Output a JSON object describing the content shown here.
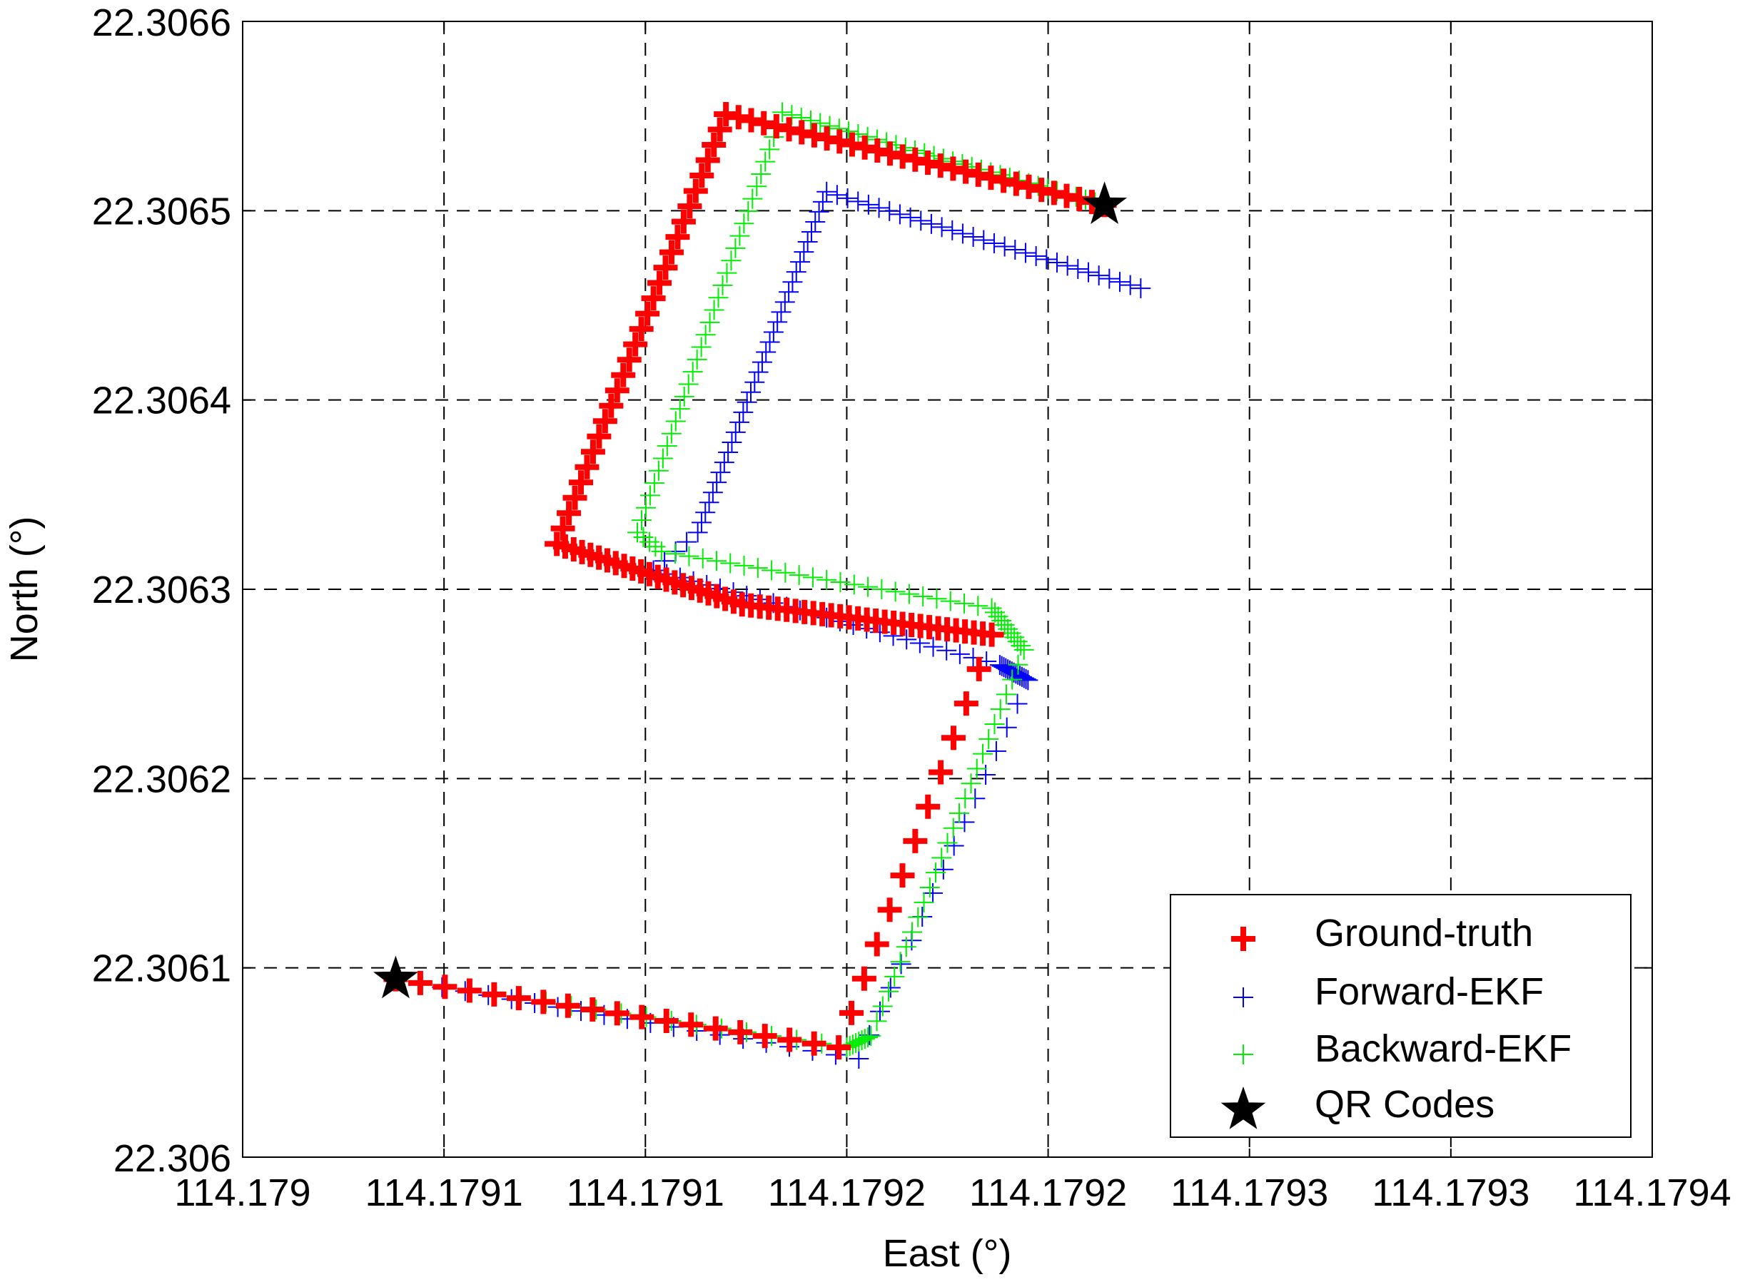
{
  "chart_data": {
    "type": "scatter",
    "xlabel": "East (°)",
    "ylabel": "North (°)",
    "xlim": [
      114.17898,
      114.17933
    ],
    "ylim": [
      22.306,
      22.3066
    ],
    "x_ticks": [
      {
        "value": 114.17898,
        "label": "114.179"
      },
      {
        "value": 114.17903,
        "label": "114.1791"
      },
      {
        "value": 114.17908,
        "label": "114.1791"
      },
      {
        "value": 114.17913,
        "label": "114.1792"
      },
      {
        "value": 114.17918,
        "label": "114.1792"
      },
      {
        "value": 114.17923,
        "label": "114.1793"
      },
      {
        "value": 114.17928,
        "label": "114.1793"
      },
      {
        "value": 114.17933,
        "label": "114.1794"
      }
    ],
    "y_ticks": [
      {
        "value": 22.306,
        "label": "22.306"
      },
      {
        "value": 22.3061,
        "label": "22.3061"
      },
      {
        "value": 22.3062,
        "label": "22.3062"
      },
      {
        "value": 22.3063,
        "label": "22.3063"
      },
      {
        "value": 22.3064,
        "label": "22.3064"
      },
      {
        "value": 22.3065,
        "label": "22.3065"
      },
      {
        "value": 22.3066,
        "label": "22.3066"
      }
    ],
    "grid": true,
    "grid_style": "dashed",
    "legend_position": "bottom-right",
    "series": [
      {
        "name": "Ground-truth",
        "color": "#ff0000",
        "marker": "bold-plus",
        "waypoints": [
          {
            "x": 114.179018,
            "y": 22.306094,
            "n": 18
          },
          {
            "x": 114.179128,
            "y": 22.306058,
            "n": 12
          },
          {
            "x": 114.179166,
            "y": 22.306276,
            "n": 28
          },
          {
            "x": 114.179104,
            "y": 22.306292,
            "n": 22
          },
          {
            "x": 114.179058,
            "y": 22.306324,
            "n": 28
          },
          {
            "x": 114.1791,
            "y": 22.306551,
            "n": 30
          },
          {
            "x": 114.179194,
            "y": 22.306503,
            "n": 0
          }
        ]
      },
      {
        "name": "Forward-EKF",
        "color": "#0000ff",
        "marker": "plus",
        "waypoints": [
          {
            "x": 114.179018,
            "y": 22.306094,
            "n": 20
          },
          {
            "x": 114.179133,
            "y": 22.306052,
            "n": 16
          },
          {
            "x": 114.179175,
            "y": 22.306252,
            "n": 14
          },
          {
            "x": 114.179168,
            "y": 22.30626,
            "n": 26
          },
          {
            "x": 114.179082,
            "y": 22.30631,
            "n": 4
          },
          {
            "x": 114.179093,
            "y": 22.30633,
            "n": 34
          },
          {
            "x": 114.179125,
            "y": 22.30651,
            "n": 30
          },
          {
            "x": 114.179203,
            "y": 22.306459,
            "n": 0
          }
        ]
      },
      {
        "name": "Backward-EKF",
        "color": "#00ee00",
        "marker": "plus",
        "waypoints": [
          {
            "x": 114.179018,
            "y": 22.306094,
            "n": 18
          },
          {
            "x": 114.17913,
            "y": 22.306058,
            "n": 8
          },
          {
            "x": 114.179136,
            "y": 22.306064,
            "n": 26
          },
          {
            "x": 114.179174,
            "y": 22.306268,
            "n": 10
          },
          {
            "x": 114.179166,
            "y": 22.30629,
            "n": 24
          },
          {
            "x": 114.179084,
            "y": 22.30632,
            "n": 4
          },
          {
            "x": 114.179078,
            "y": 22.30633,
            "n": 34
          },
          {
            "x": 114.179114,
            "y": 22.306552,
            "n": 34
          },
          {
            "x": 114.179194,
            "y": 22.306503,
            "n": 0
          }
        ]
      },
      {
        "name": "QR Codes",
        "color": "#000000",
        "marker": "star",
        "points": [
          {
            "x": 114.179018,
            "y": 22.306094
          },
          {
            "x": 114.179194,
            "y": 22.306503
          }
        ]
      }
    ]
  }
}
